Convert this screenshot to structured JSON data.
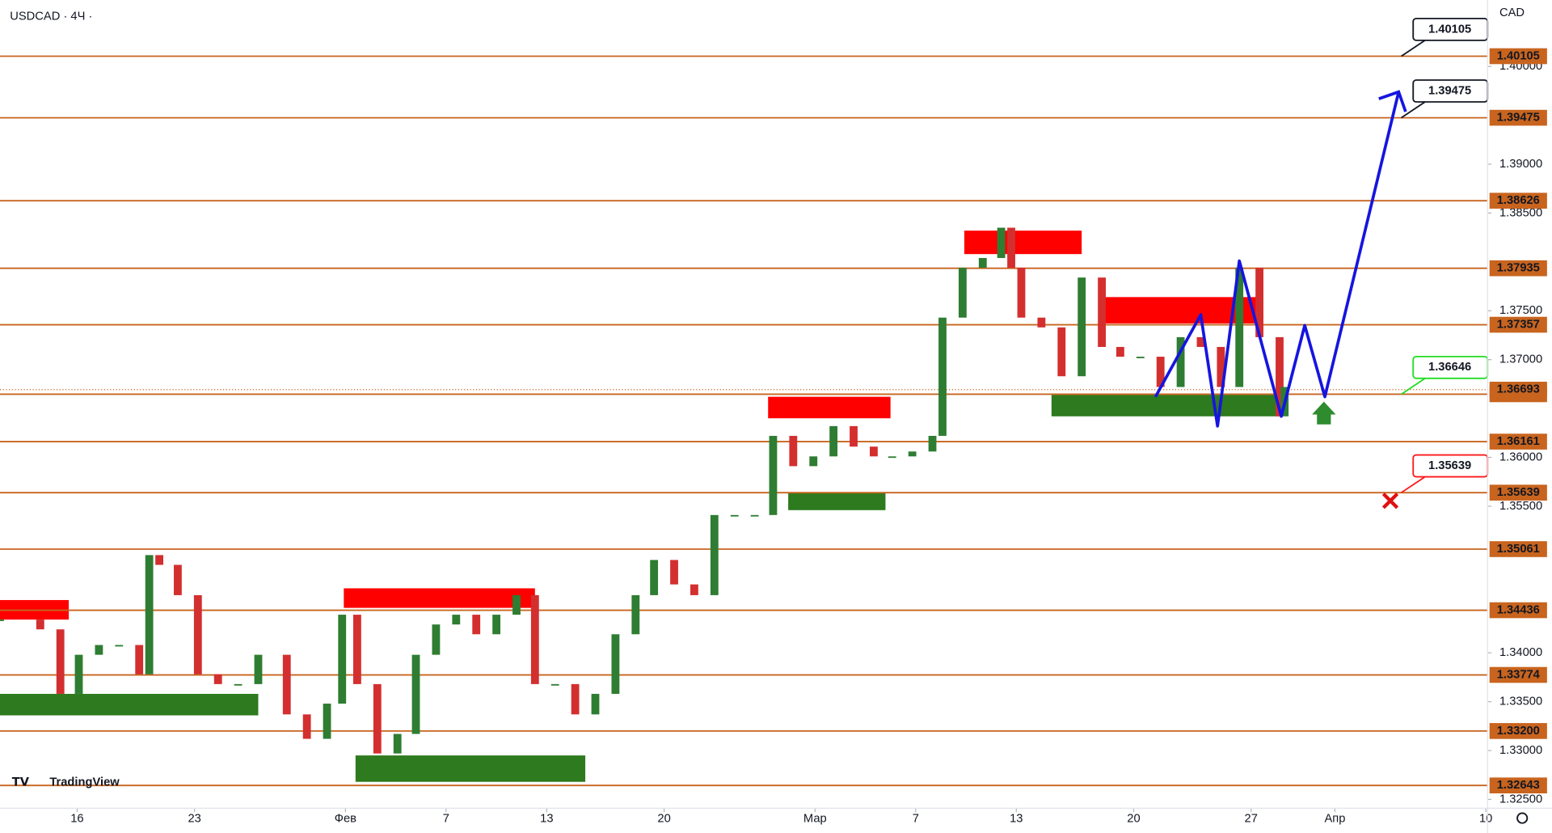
{
  "chart_data": {
    "type": "candlestick",
    "title": "USDCAD · 4Ч ·",
    "currency": "CAD",
    "brand": "TradingView",
    "xlim": [
      11.4,
      100.1
    ],
    "ylim": [
      1.3241,
      1.4068
    ],
    "xticks": [
      16,
      23,
      {
        "value": 32,
        "label": "Фев"
      },
      {
        "value": 38,
        "label": "7"
      },
      {
        "value": 44,
        "label": "13"
      },
      {
        "value": 51,
        "label": "20"
      },
      {
        "value": 60,
        "label": "Мар"
      },
      {
        "value": 66,
        "label": "7"
      },
      {
        "value": 72,
        "label": "13"
      },
      {
        "value": 79,
        "label": "20"
      },
      {
        "value": 86,
        "label": "27"
      },
      {
        "value": 91,
        "label": "Апр"
      },
      {
        "value": 100,
        "label": "10"
      }
    ],
    "yticks": [
      {
        "value": 1.4,
        "label": "1.40000"
      },
      {
        "value": 1.39,
        "label": "1.39000"
      },
      {
        "value": 1.385,
        "label": "1.38500"
      },
      {
        "value": 1.375,
        "label": "1.37500"
      },
      {
        "value": 1.37,
        "label": "1.37000"
      },
      {
        "value": 1.36,
        "label": "1.36000"
      },
      {
        "value": 1.355,
        "label": "1.35500"
      },
      {
        "value": 1.34,
        "label": "1.34000"
      },
      {
        "value": 1.335,
        "label": "1.33500"
      },
      {
        "value": 1.33,
        "label": "1.33000"
      },
      {
        "value": 1.325,
        "label": "1.32500"
      }
    ],
    "series": [
      {
        "name": "USDCAD",
        "up_color": "#2e7d32",
        "down_color": "#d32f2f",
        "x": [
          11.4,
          13.8,
          15.0,
          16.1,
          17.3,
          18.5,
          19.7,
          20.3,
          20.9,
          22.0,
          23.2,
          24.4,
          25.6,
          26.8,
          28.5,
          29.7,
          30.9,
          31.8,
          32.7,
          33.9,
          35.1,
          36.2,
          37.4,
          38.6,
          39.8,
          41.0,
          42.2,
          43.3,
          44.5,
          45.7,
          46.9,
          48.1,
          49.3,
          50.4,
          51.6,
          52.8,
          54.0,
          55.2,
          56.4,
          57.5,
          58.7,
          59.9,
          61.1,
          62.3,
          63.5,
          64.6,
          65.8,
          67.0,
          67.6,
          68.8,
          70.0,
          71.1,
          71.7,
          72.3,
          73.5,
          74.7,
          75.9,
          77.1,
          78.2,
          79.4,
          80.6,
          81.8,
          83.0,
          84.2,
          85.3,
          86.5,
          87.7,
          88.0
        ],
        "values": [
          1.3434,
          1.3424,
          1.3358,
          1.3398,
          1.3408,
          1.3408,
          1.3378,
          1.35,
          1.349,
          1.3459,
          1.3378,
          1.3368,
          1.3368,
          1.3398,
          1.3337,
          1.3312,
          1.3348,
          1.3439,
          1.3368,
          1.3297,
          1.3317,
          1.3398,
          1.3429,
          1.3439,
          1.3419,
          1.3439,
          1.3459,
          1.3368,
          1.3368,
          1.3337,
          1.3358,
          1.3419,
          1.3459,
          1.3495,
          1.347,
          1.3459,
          1.3541,
          1.3541,
          1.3541,
          1.3622,
          1.3591,
          1.3601,
          1.3632,
          1.3611,
          1.3601,
          1.3601,
          1.3606,
          1.3622,
          1.3743,
          1.3794,
          1.3804,
          1.3835,
          1.3794,
          1.3743,
          1.3733,
          1.3683,
          1.3784,
          1.3713,
          1.3703,
          1.3703,
          1.3672,
          1.3723,
          1.3713,
          1.3672,
          1.3794,
          1.3723,
          1.3642,
          1.3672
        ]
      }
    ],
    "projection": {
      "color": "#1515e0",
      "x": [
        80.3,
        83.0,
        84.0,
        85.3,
        87.8,
        89.2,
        90.4,
        94.8
      ],
      "values": [
        1.3662,
        1.3746,
        1.3632,
        1.3801,
        1.3642,
        1.3735,
        1.3662,
        1.3974
      ]
    },
    "zones": [
      {
        "x": [
          11.4,
          15.5
        ],
        "y": [
          1.3434,
          1.3454
        ],
        "color": "#ff0000"
      },
      {
        "x": [
          31.9,
          43.3
        ],
        "y": [
          1.3446,
          1.3466
        ],
        "color": "#ff0000"
      },
      {
        "x": [
          57.2,
          64.5
        ],
        "y": [
          1.364,
          1.3662
        ],
        "color": "#ff0000"
      },
      {
        "x": [
          68.9,
          75.9
        ],
        "y": [
          1.3808,
          1.3832
        ],
        "color": "#ff0000"
      },
      {
        "x": [
          77.1,
          86.4
        ],
        "y": [
          1.3737,
          1.3764
        ],
        "color": "#ff0000"
      },
      {
        "x": [
          11.4,
          26.8
        ],
        "y": [
          1.3336,
          1.3358
        ],
        "color": "#2e7a1e"
      },
      {
        "x": [
          32.6,
          46.3
        ],
        "y": [
          1.3268,
          1.3295
        ],
        "color": "#2e7a1e"
      },
      {
        "x": [
          58.4,
          64.2
        ],
        "y": [
          1.3546,
          1.3564
        ],
        "color": "#2e7a1e"
      },
      {
        "x": [
          74.1,
          87.7
        ],
        "y": [
          1.3642,
          1.3664
        ],
        "color": "#2e7a1e"
      }
    ],
    "level_color": "#c8641e",
    "levels": [
      1.40105,
      1.39475,
      1.38626,
      1.37935,
      1.37357,
      1.36646,
      1.36161,
      1.35639,
      1.35061,
      1.34436,
      1.33774,
      {
        "value": 1.332,
        "label": "1.33200"
      },
      1.32643
    ],
    "current_price": 1.36693,
    "callouts": [
      {
        "value": 1.40105,
        "color": "#131722"
      },
      {
        "value": 1.39475,
        "color": "#131722"
      },
      {
        "value": 1.36646,
        "color": "#22dd22"
      },
      {
        "value": 1.35639,
        "color": "#ff1a1a"
      }
    ]
  }
}
